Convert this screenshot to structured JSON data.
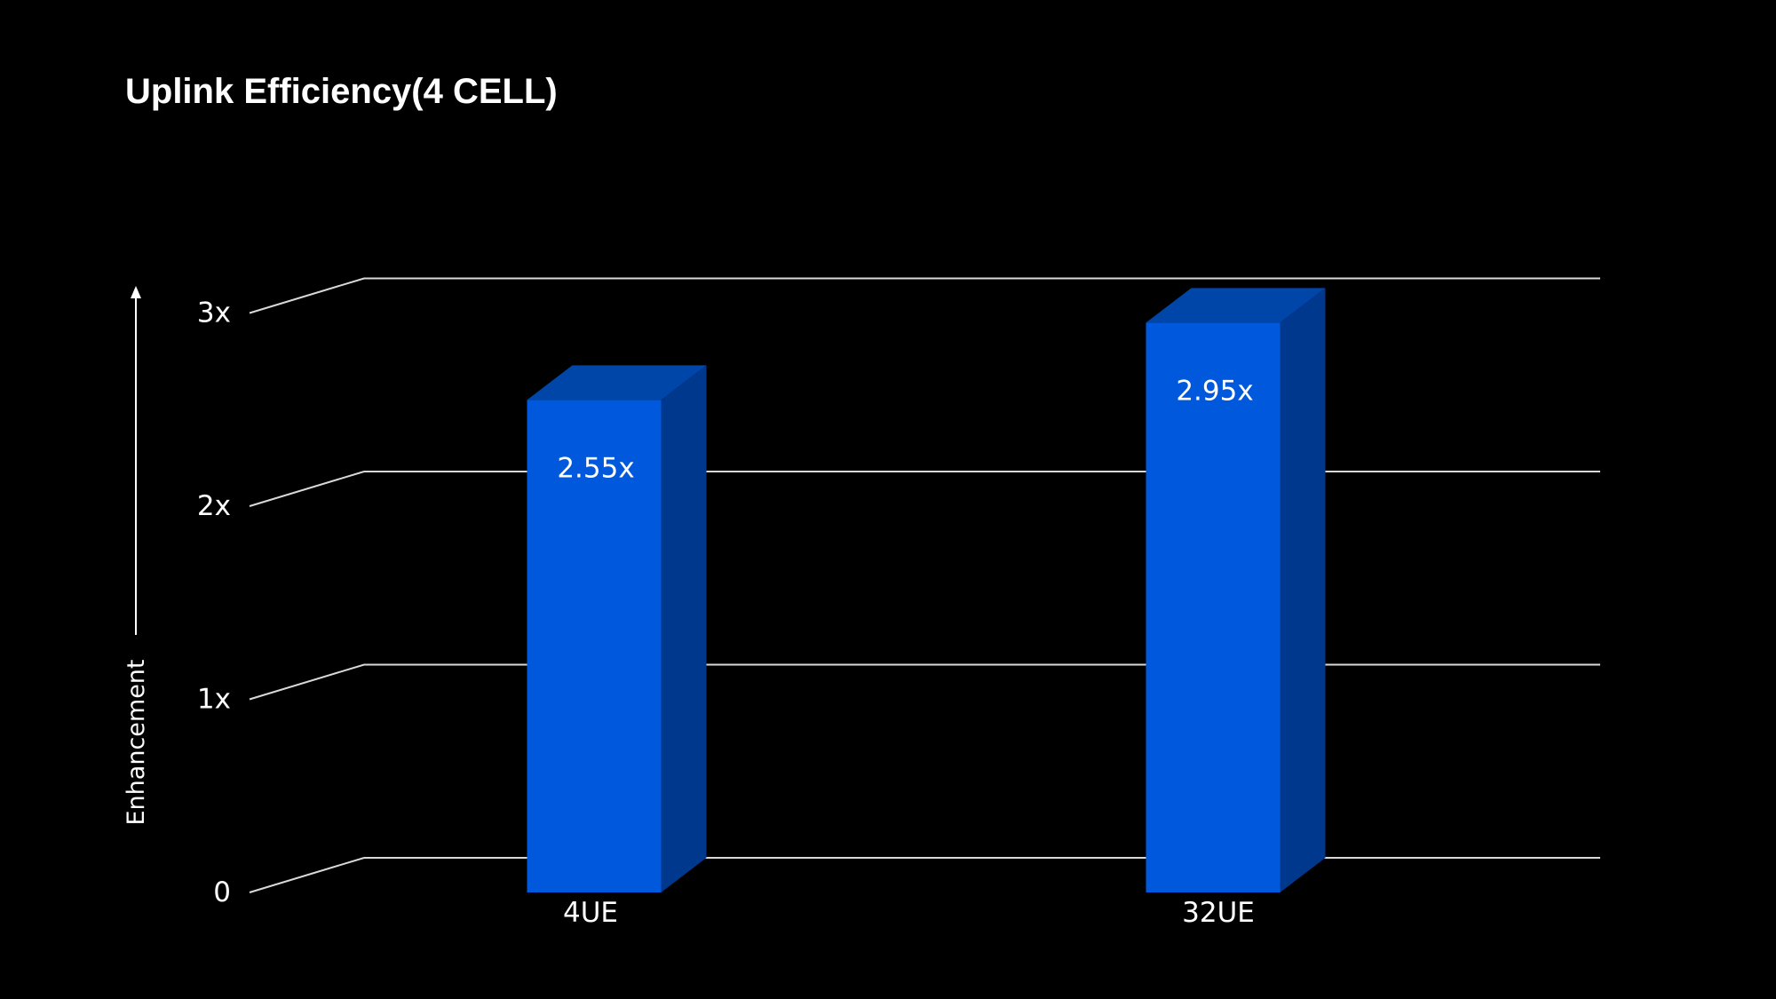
{
  "chart_data": {
    "type": "bar",
    "title": "Uplink Efficiency(4 CELL)",
    "ylabel": "Enhancement",
    "xlabel": "",
    "categories": [
      "4UE",
      "32UE"
    ],
    "values": [
      2.55,
      2.95
    ],
    "data_labels": [
      "2.55x",
      "2.95x"
    ],
    "yticks": [
      {
        "value": 0,
        "label": "0"
      },
      {
        "value": 1,
        "label": "1x"
      },
      {
        "value": 2,
        "label": "2x"
      },
      {
        "value": 3,
        "label": "3x"
      }
    ],
    "ylim": [
      0,
      3
    ],
    "grid": true,
    "style": "3d",
    "colors": {
      "background": "#000000",
      "bar_front": "#0059DC",
      "bar_top": "#0045A8",
      "bar_side": "#00388E",
      "grid": "#d9d9d9",
      "text": "#ffffff"
    }
  }
}
